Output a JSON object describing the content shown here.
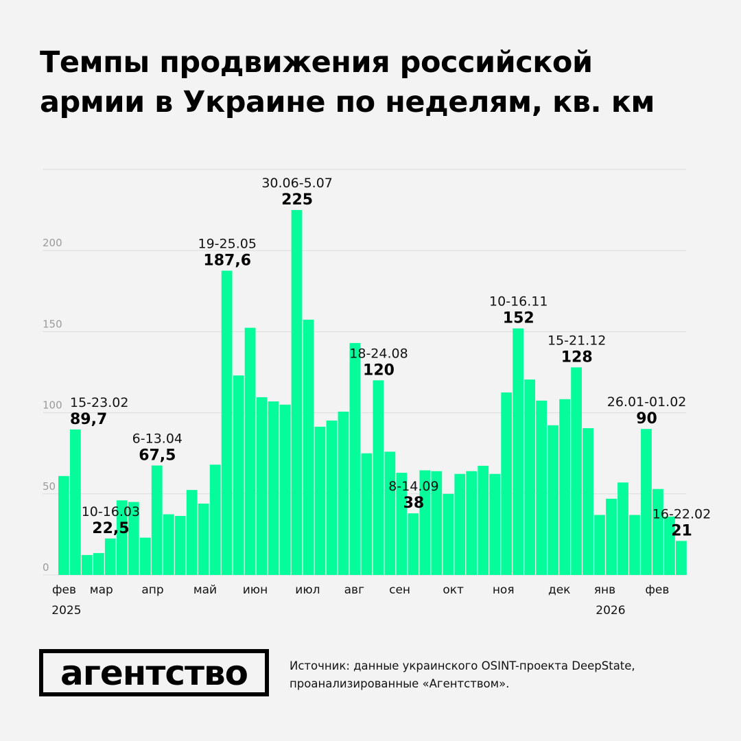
{
  "title": "Темпы продвижения российской армии в Украине по неделям, кв. км",
  "source": [
    "Источник: данные украинского OSINT-проекта DeepState,",
    "проанализированные «Агентством»."
  ],
  "logo_text": "агентство",
  "colors": {
    "bar": "#06fb9a",
    "grid": "#dcdcdc",
    "axis_text": "#9a9a9a",
    "background": "#f3f3f3"
  },
  "chart_data": {
    "type": "bar",
    "title": "Темпы продвижения российской армии в Украине по неделям, кв. км",
    "ylim": [
      0,
      250
    ],
    "yticks": [
      0,
      50,
      100,
      150,
      200
    ],
    "grid": true,
    "values": [
      61,
      89.7,
      12.3,
      13.5,
      22.5,
      46,
      45,
      23,
      67.5,
      37.4,
      36.4,
      52.4,
      44,
      68,
      187.6,
      123,
      152.4,
      109.6,
      107,
      105,
      225,
      157.4,
      91.4,
      95.2,
      100.7,
      143,
      75,
      120,
      76,
      63,
      38,
      64.5,
      64,
      50,
      62.3,
      64,
      67.3,
      62.3,
      112.5,
      152,
      120.5,
      107.5,
      92.3,
      108.4,
      128,
      90.5,
      37,
      47,
      57,
      37,
      90,
      53,
      36,
      21
    ],
    "month_labels": [
      {
        "label": "фев",
        "bar": 0.5
      },
      {
        "label": "мар",
        "bar": 3.7
      },
      {
        "label": "апр",
        "bar": 8.1
      },
      {
        "label": "май",
        "bar": 12.6
      },
      {
        "label": "июн",
        "bar": 16.9
      },
      {
        "label": "июл",
        "bar": 21.4
      },
      {
        "label": "авг",
        "bar": 25.4
      },
      {
        "label": "сен",
        "bar": 29.3
      },
      {
        "label": "окт",
        "bar": 33.9
      },
      {
        "label": "ноя",
        "bar": 38.2
      },
      {
        "label": "дек",
        "bar": 43
      },
      {
        "label": "янв",
        "bar": 46.9
      },
      {
        "label": "фев",
        "bar": 51.4
      }
    ],
    "year_labels": [
      {
        "label": "2025",
        "bar": 0.7
      },
      {
        "label": "2026",
        "bar": 47.4
      }
    ],
    "annotations": [
      {
        "bar": 1,
        "date": "15-23.02",
        "value": "89,7"
      },
      {
        "bar": 4,
        "date": "10-16.03",
        "value": "22,5"
      },
      {
        "bar": 8,
        "date": "6-13.04",
        "value": "67,5"
      },
      {
        "bar": 14,
        "date": "19-25.05",
        "value": "187,6"
      },
      {
        "bar": 20,
        "date": "30.06-5.07",
        "value": "225"
      },
      {
        "bar": 27,
        "date": "18-24.08",
        "value": "120"
      },
      {
        "bar": 30,
        "date": "8-14.09",
        "value": "38"
      },
      {
        "bar": 39,
        "date": "10-16.11",
        "value": "152"
      },
      {
        "bar": 44,
        "date": "15-21.12",
        "value": "128"
      },
      {
        "bar": 50,
        "date": "26.01-01.02",
        "value": "90"
      },
      {
        "bar": 53,
        "date": "16-22.02",
        "value": "21"
      }
    ]
  }
}
